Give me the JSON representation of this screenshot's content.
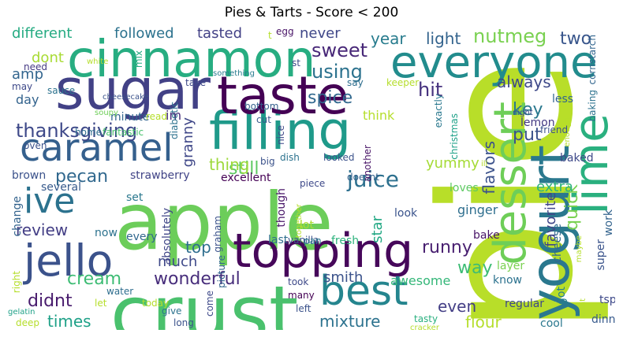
{
  "title": "Pies & Tarts - Score < 200",
  "words": [
    {
      "text": "pie",
      "color": "#b8de29",
      "vertical": true
    },
    {
      "text": "apple",
      "color": "#6ccd5a"
    },
    {
      "text": "crust",
      "color": "#4ac16d"
    },
    {
      "text": "cinnamon",
      "color": "#27ad81"
    },
    {
      "text": "sugar",
      "color": "#424186"
    },
    {
      "text": "everyone",
      "color": "#228c8d"
    },
    {
      "text": "filling",
      "color": "#1f9a8a"
    },
    {
      "text": "taste",
      "color": "#440154"
    },
    {
      "text": "topping",
      "color": "#46075a"
    },
    {
      "text": "caramel",
      "color": "#35608d"
    },
    {
      "text": "jello",
      "color": "#3b528b"
    },
    {
      "text": "yogurt",
      "color": "#2a788e"
    },
    {
      "text": "lime",
      "color": "#2ab07f"
    },
    {
      "text": "dessert",
      "color": "#6ece58"
    },
    {
      "text": "best",
      "color": "#25858e"
    },
    {
      "text": "ive",
      "color": "#2c728e"
    },
    {
      "text": "quick",
      "color": "#7ad151"
    },
    {
      "text": "thanksgiving",
      "color": "#3e4989"
    },
    {
      "text": "favorite",
      "color": "#404688"
    },
    {
      "text": "wonderful",
      "color": "#472d7b"
    },
    {
      "text": "juice",
      "color": "#2d708e"
    },
    {
      "text": "pecan",
      "color": "#31688e"
    },
    {
      "text": "review",
      "color": "#433e85"
    },
    {
      "text": "cream",
      "color": "#3dbc74"
    },
    {
      "text": "didnt",
      "color": "#481b6d"
    },
    {
      "text": "sweet",
      "color": "#482878"
    },
    {
      "text": "nutmeg",
      "color": "#7ad151"
    },
    {
      "text": "key",
      "color": "#2a788e"
    },
    {
      "text": "put",
      "color": "#3b528b"
    },
    {
      "text": "always",
      "color": "#3e4989"
    },
    {
      "text": "using",
      "color": "#2c728e"
    },
    {
      "text": "spice",
      "color": "#31688e"
    },
    {
      "text": "hit",
      "color": "#46327e"
    },
    {
      "text": "still",
      "color": "#5ec962"
    },
    {
      "text": "runny",
      "color": "#481f70"
    },
    {
      "text": "flavors",
      "color": "#3b528b"
    },
    {
      "text": "mixture",
      "color": "#2c728e"
    },
    {
      "text": "even",
      "color": "#433e85"
    },
    {
      "text": "flour",
      "color": "#b5de2b"
    },
    {
      "text": "times",
      "color": "#1fa188"
    },
    {
      "text": "two",
      "color": "#39568c"
    },
    {
      "text": "year",
      "color": "#287c8e"
    },
    {
      "text": "light",
      "color": "#33638d"
    },
    {
      "text": "different",
      "color": "#25ab82"
    },
    {
      "text": "followed",
      "color": "#2c728e"
    },
    {
      "text": "tasted",
      "color": "#424186"
    },
    {
      "text": "never",
      "color": "#3f4788"
    },
    {
      "text": "thing",
      "color": "#9dd93b"
    },
    {
      "text": "top",
      "color": "#2e6e8e"
    },
    {
      "text": "way",
      "color": "#3dbc74"
    },
    {
      "text": "extra",
      "color": "#2db27d"
    },
    {
      "text": "granny",
      "color": "#3f4788"
    },
    {
      "text": "star",
      "color": "#22a884"
    },
    {
      "text": "yummy",
      "color": "#a5db36"
    },
    {
      "text": "smith",
      "color": "#3b528b"
    },
    {
      "text": "much",
      "color": "#3e4989"
    },
    {
      "text": "amp",
      "color": "#32658e"
    },
    {
      "text": "dont",
      "color": "#a8db34"
    },
    {
      "text": "day",
      "color": "#33638d"
    },
    {
      "text": "im",
      "color": "#472c7a"
    },
    {
      "text": "think",
      "color": "#b5de2b"
    },
    {
      "text": "awesome",
      "color": "#35b779"
    },
    {
      "text": "ginger",
      "color": "#2e6e8e"
    },
    {
      "text": "lemon",
      "color": "#443983"
    },
    {
      "text": "baked",
      "color": "#3e4989"
    },
    {
      "text": "cheese",
      "color": "#31688e"
    },
    {
      "text": "layer",
      "color": "#7ad151"
    },
    {
      "text": "know",
      "color": "#2c728e"
    },
    {
      "text": "bake",
      "color": "#481467"
    },
    {
      "text": "loves",
      "color": "#5ec962"
    },
    {
      "text": "look",
      "color": "#3a538b"
    },
    {
      "text": "regular",
      "color": "#3e4989"
    },
    {
      "text": "cool",
      "color": "#2a788e"
    },
    {
      "text": "dinner",
      "color": "#375a8c"
    },
    {
      "text": "tsp",
      "color": "#3e4989"
    },
    {
      "text": "work",
      "color": "#33638d"
    },
    {
      "text": "super",
      "color": "#3a538b"
    },
    {
      "text": "got",
      "color": "#277f8e"
    },
    {
      "text": "less",
      "color": "#32658e"
    },
    {
      "text": "brown",
      "color": "#3b528b"
    },
    {
      "text": "several",
      "color": "#375a8c"
    },
    {
      "text": "change",
      "color": "#33638d"
    },
    {
      "text": "excellent",
      "color": "#440154"
    },
    {
      "text": "strawberry",
      "color": "#414487"
    },
    {
      "text": "absolutely",
      "color": "#404688"
    },
    {
      "text": "every",
      "color": "#31688e"
    },
    {
      "text": "now",
      "color": "#2c728e"
    },
    {
      "text": "picture",
      "color": "#32658e"
    },
    {
      "text": "last",
      "color": "#2e6e8e"
    },
    {
      "text": "vanilla",
      "color": "#3b528b"
    },
    {
      "text": "lot",
      "color": "#aadc32"
    },
    {
      "text": "pan",
      "color": "#2a788e"
    },
    {
      "text": "fresh",
      "color": "#2db27d"
    },
    {
      "text": "piece",
      "color": "#3e4989"
    },
    {
      "text": "though",
      "color": "#481668"
    },
    {
      "text": "doesnt",
      "color": "#34618d"
    },
    {
      "text": "graham",
      "color": "#3b528b"
    },
    {
      "text": "set",
      "color": "#2a788e"
    },
    {
      "text": "minute",
      "color": "#32658e"
    },
    {
      "text": "read",
      "color": "#b5de2b"
    },
    {
      "text": "home",
      "color": "#2e6e8e"
    },
    {
      "text": "fantastic",
      "color": "#4ac16d"
    },
    {
      "text": "oven",
      "color": "#3b528b"
    },
    {
      "text": "sauce",
      "color": "#2c728e"
    },
    {
      "text": "may",
      "color": "#3e4989"
    },
    {
      "text": "need",
      "color": "#443983"
    },
    {
      "text": "white",
      "color": "#b5de2b"
    },
    {
      "text": "mix",
      "color": "#25ab82"
    },
    {
      "text": "soupy",
      "color": "#6ece58"
    },
    {
      "text": "diabetic",
      "color": "#2c728e"
    },
    {
      "text": "take",
      "color": "#3e4989"
    },
    {
      "text": "bottom",
      "color": "#35608d"
    },
    {
      "text": "something",
      "color": "#287c8e"
    },
    {
      "text": "cut",
      "color": "#375a8c"
    },
    {
      "text": "nice",
      "color": "#3e4989"
    },
    {
      "text": "big",
      "color": "#3b528b"
    },
    {
      "text": "dish",
      "color": "#2c728e"
    },
    {
      "text": "looked",
      "color": "#3b528b"
    },
    {
      "text": "another",
      "color": "#481467"
    },
    {
      "text": "say",
      "color": "#2e6e8e"
    },
    {
      "text": "keeper",
      "color": "#b5de2b"
    },
    {
      "text": "exactly",
      "color": "#2a788e"
    },
    {
      "text": "christmas",
      "color": "#1fa188"
    },
    {
      "text": "night",
      "color": "#3e4989"
    },
    {
      "text": "enough",
      "color": "#b5de2b"
    },
    {
      "text": "friend",
      "color": "#3b528b"
    },
    {
      "text": "cornstarch",
      "color": "#32658e"
    },
    {
      "text": "baking",
      "color": "#2c728e"
    },
    {
      "text": "st",
      "color": "#3e4989"
    },
    {
      "text": "egg",
      "color": "#481467"
    },
    {
      "text": "t",
      "color": "#b5de2b"
    },
    {
      "text": "ill",
      "color": "#b5de2b"
    },
    {
      "text": "maybe",
      "color": "#b5de2b"
    },
    {
      "text": "right",
      "color": "#b5de2b"
    },
    {
      "text": "water",
      "color": "#2e6e8e"
    },
    {
      "text": "let",
      "color": "#b5de2b"
    },
    {
      "text": "today",
      "color": "#b5de2b"
    },
    {
      "text": "give",
      "color": "#2c728e"
    },
    {
      "text": "long",
      "color": "#3b528b"
    },
    {
      "text": "come",
      "color": "#3e4989"
    },
    {
      "text": "many",
      "color": "#440154"
    },
    {
      "text": "left",
      "color": "#3b528b"
    },
    {
      "text": "took",
      "color": "#3e4989"
    },
    {
      "text": "together",
      "color": "#b5de2b"
    },
    {
      "text": "tasty",
      "color": "#2ab07f"
    },
    {
      "text": "cracker",
      "color": "#b5de2b"
    },
    {
      "text": "gelatin",
      "color": "#1fa188"
    },
    {
      "text": "deep",
      "color": "#b5de2b"
    },
    {
      "text": "want",
      "color": "#b5de2b"
    },
    {
      "text": "cheesecake",
      "color": "#3b528b"
    }
  ]
}
